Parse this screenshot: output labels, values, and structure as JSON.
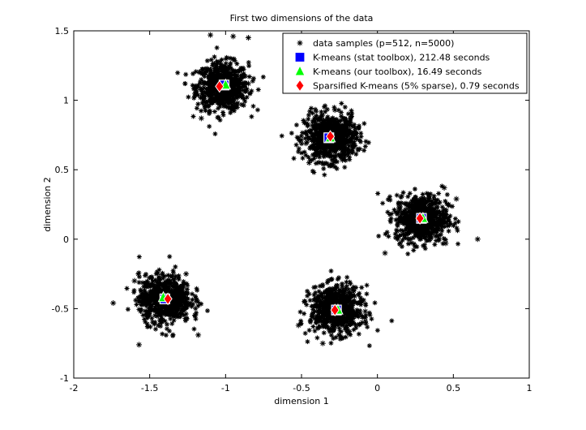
{
  "chart_data": {
    "type": "scatter",
    "title": "First two dimensions of the data",
    "xlabel": "dimension 1",
    "ylabel": "dimension 2",
    "xlim": [
      -2,
      1
    ],
    "ylim": [
      -1,
      1.5
    ],
    "xticks": [
      "-2",
      "-1.5",
      "-1",
      "-0.5",
      "0",
      "0.5",
      "1"
    ],
    "yticks": [
      "-1",
      "-0.5",
      "0",
      "0.5",
      "1",
      "1.5"
    ],
    "grid": false,
    "legend_placement": "top-right",
    "clusters": [
      {
        "x": -1.02,
        "y": 1.1
      },
      {
        "x": -0.31,
        "y": 0.73
      },
      {
        "x": 0.29,
        "y": 0.15
      },
      {
        "x": -1.4,
        "y": -0.43
      },
      {
        "x": -0.27,
        "y": -0.51
      }
    ],
    "series": [
      {
        "name": "data samples (p=512, n=5000)",
        "marker": "star",
        "color": "#000000",
        "points": [
          [
            -1.1,
            1.47
          ],
          [
            -0.95,
            1.46
          ],
          [
            -0.85,
            1.45
          ],
          [
            -1.16,
            0.87
          ],
          [
            -0.92,
            0.98
          ],
          [
            -0.85,
            1.12
          ],
          [
            -0.47,
            0.69
          ],
          [
            -0.14,
            0.72
          ],
          [
            -0.45,
            0.55
          ],
          [
            -0.28,
            0.93
          ],
          [
            -0.23,
            0.57
          ],
          [
            -0.4,
            0.6
          ],
          [
            0.16,
            0.31
          ],
          [
            0.44,
            0.37
          ],
          [
            0.52,
            0.29
          ],
          [
            0.66,
            0.0
          ],
          [
            0.05,
            -0.1
          ],
          [
            0.45,
            -0.03
          ],
          [
            -1.74,
            -0.46
          ],
          [
            -1.6,
            -0.3
          ],
          [
            -1.26,
            -0.25
          ],
          [
            -1.2,
            -0.55
          ],
          [
            -1.57,
            -0.76
          ],
          [
            -1.18,
            -0.69
          ],
          [
            -0.48,
            -0.45
          ],
          [
            -0.1,
            -0.6
          ],
          [
            -0.36,
            -0.75
          ],
          [
            -0.15,
            -0.41
          ],
          [
            -0.52,
            -0.62
          ],
          [
            -0.08,
            -0.52
          ]
        ]
      },
      {
        "name": "K-means (stat toolbox), 212.48 seconds",
        "marker": "square",
        "color": "#0000ff",
        "points": [
          [
            -1.01,
            1.11
          ],
          [
            -0.32,
            0.73
          ],
          [
            0.29,
            0.15
          ],
          [
            -1.4,
            -0.43
          ],
          [
            -0.27,
            -0.51
          ]
        ]
      },
      {
        "name": "K-means (our toolbox), 16.49 seconds",
        "marker": "triangle",
        "color": "#00ff00",
        "points": [
          [
            -1.0,
            1.11
          ],
          [
            -0.31,
            0.73
          ],
          [
            0.3,
            0.15
          ],
          [
            -1.41,
            -0.42
          ],
          [
            -0.26,
            -0.51
          ]
        ]
      },
      {
        "name": "Sparsified K-means (5% sparse), 0.79 seconds",
        "marker": "diamond",
        "color": "#ff0000",
        "points": [
          [
            -1.04,
            1.1
          ],
          [
            -0.31,
            0.74
          ],
          [
            0.28,
            0.15
          ],
          [
            -1.38,
            -0.43
          ],
          [
            -0.28,
            -0.51
          ]
        ]
      }
    ]
  }
}
